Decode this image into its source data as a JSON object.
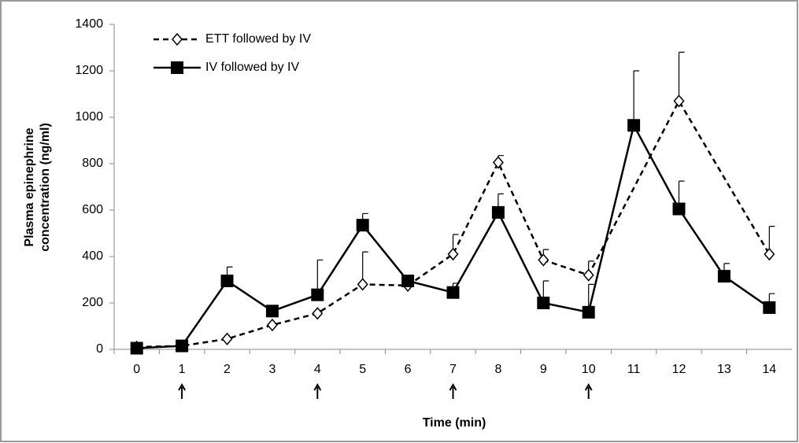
{
  "chart_data": {
    "type": "line",
    "xlabel": "Time (min)",
    "ylabel": [
      "Plasma epinephrine",
      "concentration (ng/ml)"
    ],
    "xlim": [
      -0.5,
      14.5
    ],
    "xticks": [
      0,
      1,
      2,
      3,
      4,
      5,
      6,
      7,
      8,
      9,
      10,
      11,
      12,
      13,
      14
    ],
    "ylim": [
      0,
      1400
    ],
    "yticks": [
      0,
      200,
      400,
      600,
      800,
      1000,
      1200,
      1400
    ],
    "arrow_x": [
      1,
      4,
      7,
      10
    ],
    "legend": "upper left",
    "series": [
      {
        "name": "ETT followed by IV",
        "color": "#000000",
        "dash": true,
        "marker": "diamond",
        "x": [
          0,
          1,
          2,
          3,
          4,
          5,
          6,
          7,
          8,
          9,
          10,
          12,
          14
        ],
        "values": [
          10,
          15,
          45,
          105,
          155,
          280,
          275,
          410,
          805,
          385,
          320,
          1070,
          410
        ],
        "errors": [
          null,
          null,
          null,
          null,
          null,
          140,
          null,
          85,
          30,
          45,
          60,
          210,
          120
        ]
      },
      {
        "name": "IV followed by IV",
        "color": "#000000",
        "dash": false,
        "marker": "square",
        "x": [
          0,
          1,
          2,
          3,
          4,
          5,
          6,
          7,
          8,
          9,
          10,
          11,
          12,
          13,
          14
        ],
        "values": [
          5,
          15,
          295,
          165,
          235,
          535,
          295,
          245,
          590,
          200,
          160,
          965,
          605,
          315,
          180
        ],
        "errors": [
          null,
          null,
          60,
          null,
          150,
          50,
          null,
          40,
          80,
          95,
          120,
          235,
          120,
          55,
          60
        ]
      }
    ]
  }
}
